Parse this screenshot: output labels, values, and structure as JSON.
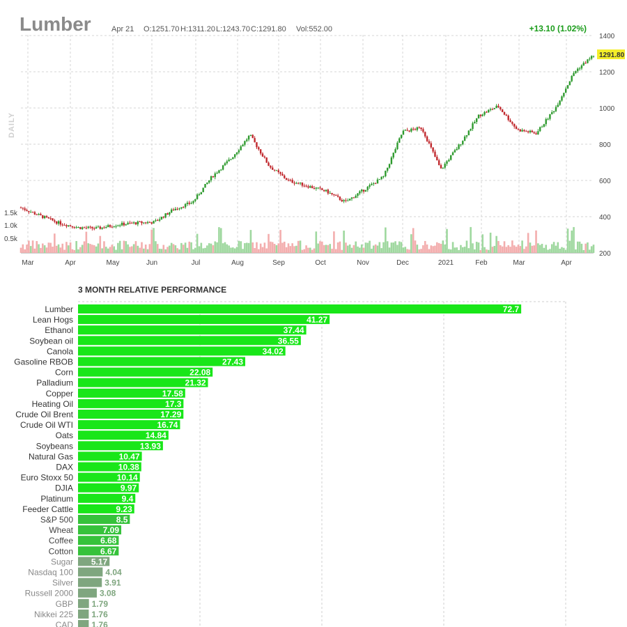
{
  "header": {
    "symbol": "Lumber",
    "date": "Apr 21",
    "open": "O:1251.70",
    "high": "H:1311.20",
    "low": "L:1243.70",
    "close": "C:1291.80",
    "volume": "Vol:552.00",
    "change": "+13.10 (1.02%)",
    "last_price_badge": "1291.80",
    "interval_label": "DAILY"
  },
  "colors": {
    "up": "#2e9a2e",
    "down": "#c0282d",
    "volume_up": "#9fd89f",
    "volume_down": "#f3aeae",
    "badge": "#f4ee2a",
    "bar_strong": "#19e619",
    "bar_mid": "#36c23b",
    "bar_weak": "#7fa67f",
    "grid": "#d6d6d6"
  },
  "chart_data": [
    {
      "type": "candlestick",
      "title": "Lumber",
      "y_ticks": [
        "1400",
        "1200",
        "1000",
        "800",
        "600",
        "400",
        "200"
      ],
      "ylim": [
        200,
        1400
      ],
      "x_ticks": [
        "Mar",
        "Apr",
        "May",
        "Jun",
        "Jul",
        "Aug",
        "Sep",
        "Oct",
        "Nov",
        "Dec",
        "2021",
        "Feb",
        "Mar",
        "Apr"
      ],
      "volume_ticks": [
        "1.5k",
        "1.0k",
        "0.5k"
      ],
      "close_path": [
        {
          "month": "Mar",
          "close": 450
        },
        {
          "month": "Mar",
          "close": 405
        },
        {
          "month": "Apr",
          "close": 365
        },
        {
          "month": "Apr",
          "close": 340
        },
        {
          "month": "May",
          "close": 335
        },
        {
          "month": "May",
          "close": 355
        },
        {
          "month": "Jun",
          "close": 365
        },
        {
          "month": "Jun",
          "close": 370
        },
        {
          "month": "Jul",
          "close": 440
        },
        {
          "month": "Jul",
          "close": 480
        },
        {
          "month": "Aug",
          "close": 620
        },
        {
          "month": "Aug",
          "close": 720
        },
        {
          "month": "Aug",
          "close": 850
        },
        {
          "month": "Sep",
          "close": 680
        },
        {
          "month": "Sep",
          "close": 600
        },
        {
          "month": "Oct",
          "close": 570
        },
        {
          "month": "Oct",
          "close": 540
        },
        {
          "month": "Nov",
          "close": 480
        },
        {
          "month": "Nov",
          "close": 550
        },
        {
          "month": "Dec",
          "close": 620
        },
        {
          "month": "Dec",
          "close": 870
        },
        {
          "month": "Dec",
          "close": 890
        },
        {
          "month": "2021",
          "close": 660
        },
        {
          "month": "2021",
          "close": 800
        },
        {
          "month": "Feb",
          "close": 960
        },
        {
          "month": "Feb",
          "close": 1010
        },
        {
          "month": "Mar",
          "close": 880
        },
        {
          "month": "Mar",
          "close": 860
        },
        {
          "month": "Apr",
          "close": 1000
        },
        {
          "month": "Apr",
          "close": 1200
        },
        {
          "month": "Apr",
          "close": 1291.8
        }
      ]
    },
    {
      "type": "bar",
      "orientation": "horizontal",
      "title": "3 MONTH RELATIVE PERFORMANCE",
      "categories": [
        "Lumber",
        "Lean Hogs",
        "Ethanol",
        "Soybean oil",
        "Canola",
        "Gasoline RBOB",
        "Corn",
        "Palladium",
        "Copper",
        "Heating Oil",
        "Crude Oil Brent",
        "Crude Oil WTI",
        "Oats",
        "Soybeans",
        "Natural Gas",
        "DAX",
        "Euro Stoxx 50",
        "DJIA",
        "Platinum",
        "Feeder Cattle",
        "S&P 500",
        "Wheat",
        "Coffee",
        "Cotton",
        "Sugar",
        "Nasdaq 100",
        "Silver",
        "Russell 2000",
        "GBP",
        "Nikkei 225",
        "CAD"
      ],
      "values": [
        72.7,
        41.27,
        37.44,
        36.55,
        34.02,
        27.43,
        22.08,
        21.32,
        17.58,
        17.3,
        17.29,
        16.74,
        14.84,
        13.93,
        10.47,
        10.38,
        10.14,
        9.97,
        9.4,
        9.23,
        8.5,
        7.09,
        6.68,
        6.67,
        5.17,
        4.04,
        3.91,
        3.08,
        1.79,
        1.76,
        1.76
      ],
      "value_labels": [
        "72.7",
        "41.27",
        "37.44",
        "36.55",
        "34.02",
        "27.43",
        "22.08",
        "21.32",
        "17.58",
        "17.3",
        "17.29",
        "16.74",
        "14.84",
        "13.93",
        "10.47",
        "10.38",
        "10.14",
        "9.97",
        "9.4",
        "9.23",
        "8.5",
        "7.09",
        "6.68",
        "6.67",
        "5.17",
        "4.04",
        "3.91",
        "3.08",
        "1.79",
        "1.76",
        "1.76"
      ],
      "xlim": [
        0,
        80
      ]
    }
  ]
}
